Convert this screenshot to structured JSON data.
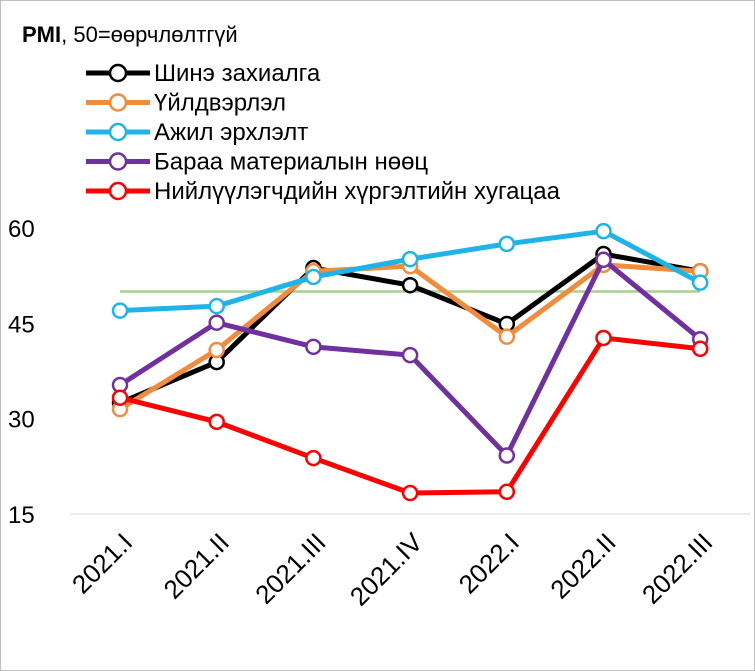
{
  "chart_data": {
    "type": "line",
    "title_bold": "PMI",
    "title_rest": ", 50=өөрчлөлтгүй",
    "categories": [
      "2021.I",
      "2021.II",
      "2021.III",
      "2021.IV",
      "2022.I",
      "2022.II",
      "2022.III"
    ],
    "yticks": [
      60,
      45,
      30,
      15
    ],
    "ylim": [
      15,
      60
    ],
    "reference_line": {
      "value": 50,
      "color": "#a9d18e"
    },
    "grid": false,
    "legend_position": "top-left",
    "series": [
      {
        "name": "Шинэ захиалга",
        "color": "#000000",
        "values": [
          32.5,
          38.9,
          53.7,
          51.0,
          44.9,
          55.9,
          53.2
        ]
      },
      {
        "name": "Үйлдвэрлэл",
        "color": "#f08c3c",
        "values": [
          31.5,
          40.8,
          53.2,
          54.0,
          42.9,
          54.2,
          53.2
        ]
      },
      {
        "name": "Ажил эрхлэлт",
        "color": "#1fb4e8",
        "values": [
          47.0,
          47.7,
          52.3,
          55.1,
          57.5,
          59.5,
          51.4
        ]
      },
      {
        "name": "Бараа материалын нөөц",
        "color": "#7030a0",
        "values": [
          35.3,
          45.1,
          41.3,
          40.0,
          24.2,
          55.0,
          42.5
        ]
      },
      {
        "name": "Нийлүүлэгчдийн хүргэлтийн хугацаа",
        "color": "#ff0000",
        "values": [
          33.3,
          29.5,
          23.8,
          18.3,
          18.5,
          42.7,
          41.0
        ]
      }
    ]
  }
}
